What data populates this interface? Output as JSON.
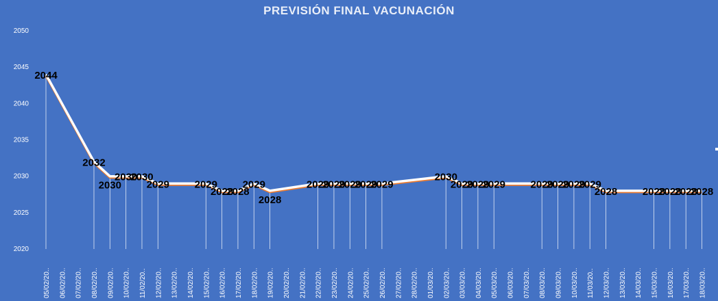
{
  "chart_data": {
    "type": "line",
    "title": "PREVISIÓN FINAL VACUNACIÓN",
    "xlabel": "",
    "ylabel": "",
    "ylim": [
      2020,
      2050
    ],
    "yticks": [
      2020,
      2025,
      2030,
      2035,
      2040,
      2045,
      2050
    ],
    "categories": [
      "05/02/20..",
      "06/02/20..",
      "07/02/20..",
      "08/02/20..",
      "09/02/20..",
      "10/02/20..",
      "11/02/20..",
      "12/02/20..",
      "13/02/20..",
      "14/02/20..",
      "15/02/20..",
      "16/02/20..",
      "17/02/20..",
      "18/02/20..",
      "19/02/20..",
      "20/02/20..",
      "21/02/20..",
      "22/02/20..",
      "23/02/20..",
      "24/02/20..",
      "25/02/20..",
      "26/02/20..",
      "27/02/20..",
      "28/02/20..",
      "01/03/20..",
      "02/03/20..",
      "03/03/20..",
      "04/03/20..",
      "05/03/20..",
      "06/03/20..",
      "07/03/20..",
      "08/03/20..",
      "09/03/20..",
      "10/03/20..",
      "11/03/20..",
      "12/03/20..",
      "13/03/20..",
      "14/03/20..",
      "15/03/20..",
      "16/03/20..",
      "17/03/20..",
      "18/03/20.."
    ],
    "values": [
      2044,
      null,
      null,
      2032,
      2030,
      2030,
      2030,
      2029,
      null,
      null,
      2029,
      2028,
      2028,
      2029,
      2028,
      null,
      null,
      2029,
      2029,
      2029,
      2029,
      2029,
      null,
      null,
      null,
      2030,
      2029,
      2029,
      2029,
      null,
      null,
      2029,
      2029,
      2029,
      2029,
      2028,
      null,
      null,
      2028,
      2028,
      2028,
      2028
    ],
    "grid": false,
    "legend": "none",
    "colors": {
      "background": "#4472c4",
      "line": "#ffffff",
      "shadow": "#ed7d31",
      "droplines": "#ffffff",
      "labels": "#000000"
    }
  }
}
